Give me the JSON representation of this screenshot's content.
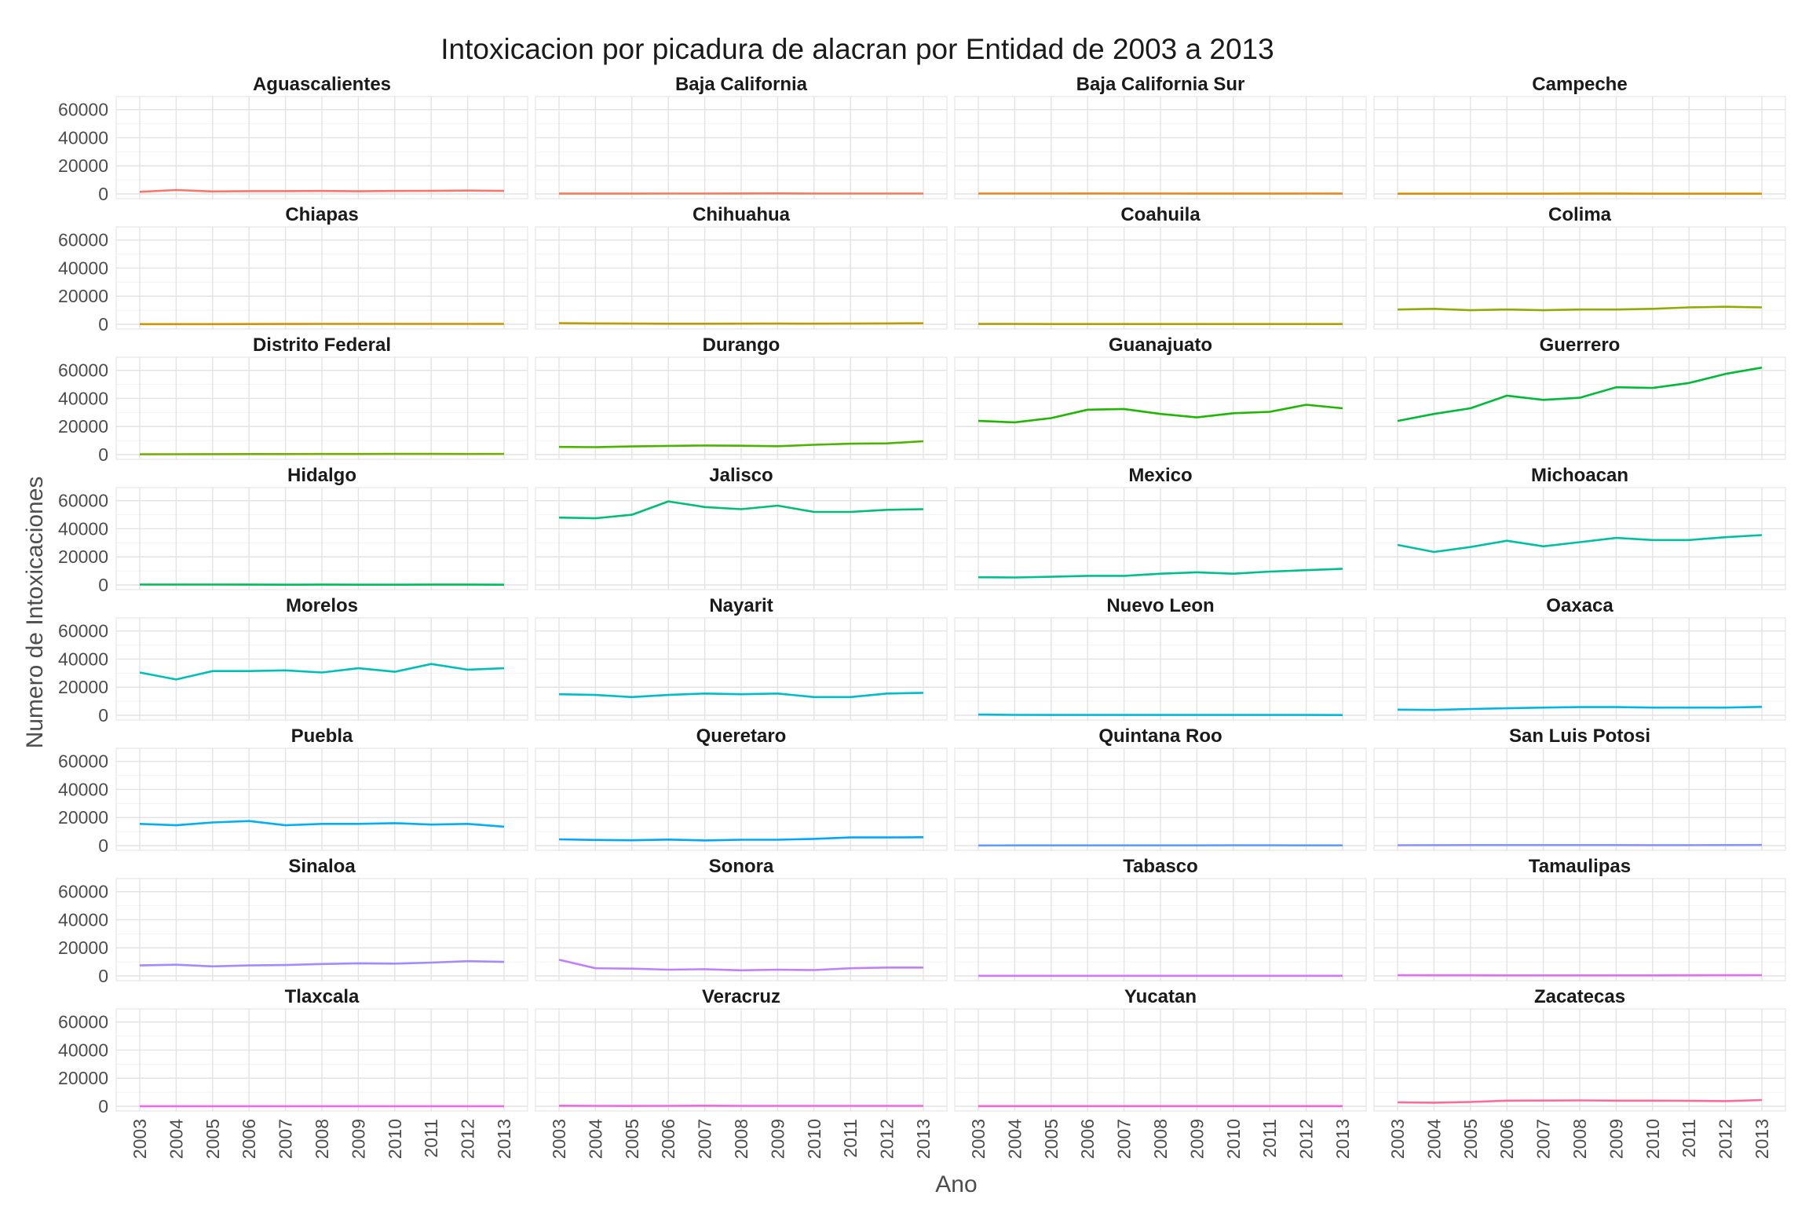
{
  "chart_data": {
    "type": "line",
    "title": "Intoxicacion por picadura de alacran por Entidad de 2003 a 2013",
    "xlabel": "Ano",
    "ylabel": "Numero de Intoxicaciones",
    "x": [
      2003,
      2004,
      2005,
      2006,
      2007,
      2008,
      2009,
      2010,
      2011,
      2012,
      2013
    ],
    "x_tick_labels": [
      "2003",
      "2004",
      "2005",
      "2006",
      "2007",
      "2008",
      "2009",
      "2010",
      "2011",
      "2012",
      "2013"
    ],
    "ylim": [
      0,
      66000
    ],
    "y_ticks": [
      0,
      20000,
      40000,
      60000
    ],
    "y_tick_labels": [
      "0",
      "20000",
      "40000",
      "60000"
    ],
    "grid": true,
    "legend": "none",
    "facet_columns": 4,
    "series": [
      {
        "panel": "Aguascalientes",
        "color": "#F8766D",
        "values": [
          1500,
          2800,
          1800,
          2000,
          2000,
          2100,
          1900,
          2100,
          2200,
          2400,
          2200
        ]
      },
      {
        "panel": "Baja California",
        "color": "#F37B59",
        "values": [
          200,
          200,
          250,
          300,
          300,
          350,
          400,
          300,
          300,
          300,
          300
        ]
      },
      {
        "panel": "Baja California Sur",
        "color": "#E7861B",
        "values": [
          300,
          300,
          300,
          350,
          300,
          300,
          250,
          250,
          250,
          300,
          250
        ]
      },
      {
        "panel": "Campeche",
        "color": "#DB8E00",
        "values": [
          150,
          150,
          150,
          150,
          150,
          200,
          200,
          150,
          150,
          150,
          150
        ]
      },
      {
        "panel": "Chiapas",
        "color": "#CF9400",
        "values": [
          100,
          100,
          100,
          150,
          200,
          300,
          300,
          300,
          300,
          300,
          300
        ]
      },
      {
        "panel": "Chihuahua",
        "color": "#BE9C00",
        "values": [
          800,
          600,
          500,
          400,
          400,
          450,
          500,
          450,
          500,
          600,
          700
        ]
      },
      {
        "panel": "Coahuila",
        "color": "#A9A400",
        "values": [
          200,
          200,
          150,
          150,
          150,
          150,
          150,
          150,
          150,
          150,
          150
        ]
      },
      {
        "panel": "Colima",
        "color": "#93AA00",
        "values": [
          10500,
          11000,
          10000,
          10500,
          10000,
          10500,
          10500,
          11000,
          12000,
          12500,
          12000
        ]
      },
      {
        "panel": "Distrito Federal",
        "color": "#72B000",
        "values": [
          200,
          300,
          350,
          400,
          400,
          450,
          450,
          500,
          500,
          450,
          500
        ]
      },
      {
        "panel": "Durango",
        "color": "#4BB400",
        "values": [
          5500,
          5300,
          5800,
          6200,
          6500,
          6300,
          6000,
          7000,
          7800,
          8000,
          9500
        ]
      },
      {
        "panel": "Guanajuato",
        "color": "#1FB700",
        "values": [
          24000,
          23000,
          26000,
          32000,
          32500,
          29000,
          26500,
          29500,
          30500,
          35500,
          33000
        ]
      },
      {
        "panel": "Guerrero",
        "color": "#00BA38",
        "values": [
          24000,
          29000,
          33000,
          42000,
          39000,
          40500,
          48000,
          47500,
          51000,
          57500,
          62000
        ]
      },
      {
        "panel": "Hidalgo",
        "color": "#00BC59",
        "values": [
          300,
          300,
          300,
          250,
          150,
          200,
          150,
          150,
          200,
          200,
          150
        ]
      },
      {
        "panel": "Jalisco",
        "color": "#00BE76",
        "values": [
          48000,
          47500,
          50000,
          59500,
          55500,
          54000,
          56500,
          52000,
          52000,
          53500,
          54000
        ]
      },
      {
        "panel": "Mexico",
        "color": "#00BF8E",
        "values": [
          5500,
          5300,
          5800,
          6500,
          6500,
          8000,
          9000,
          8000,
          9500,
          10500,
          11500
        ]
      },
      {
        "panel": "Michoacan",
        "color": "#00C0A3",
        "values": [
          28500,
          23500,
          27000,
          31500,
          27500,
          30500,
          33500,
          32000,
          32000,
          34000,
          35500
        ]
      },
      {
        "panel": "Morelos",
        "color": "#00BFB7",
        "values": [
          30500,
          25500,
          31500,
          31500,
          32000,
          30500,
          33500,
          31000,
          36500,
          32500,
          33500
        ]
      },
      {
        "panel": "Nayarit",
        "color": "#00BDC8",
        "values": [
          15000,
          14500,
          13000,
          14500,
          15500,
          15000,
          15500,
          13000,
          13000,
          15500,
          16000
        ]
      },
      {
        "panel": "Nuevo Leon",
        "color": "#00BAD9",
        "values": [
          500,
          300,
          200,
          200,
          200,
          200,
          200,
          200,
          200,
          200,
          150
        ]
      },
      {
        "panel": "Oaxaca",
        "color": "#00B5E7",
        "values": [
          4000,
          3800,
          4500,
          5000,
          5500,
          5800,
          5800,
          5500,
          5500,
          5500,
          6000
        ]
      },
      {
        "panel": "Puebla",
        "color": "#00AFF4",
        "values": [
          15500,
          14500,
          16500,
          17500,
          14500,
          15500,
          15500,
          16000,
          15000,
          15500,
          13500
        ]
      },
      {
        "panel": "Queretaro",
        "color": "#00A6FF",
        "values": [
          4500,
          4000,
          3800,
          4300,
          3700,
          4200,
          4200,
          4800,
          5800,
          5800,
          6000
        ]
      },
      {
        "panel": "Quintana Roo",
        "color": "#619CFF",
        "values": [
          100,
          150,
          150,
          150,
          150,
          150,
          150,
          200,
          200,
          150,
          150
        ]
      },
      {
        "panel": "San Luis Potosi",
        "color": "#8B93FF",
        "values": [
          300,
          350,
          400,
          400,
          400,
          400,
          400,
          350,
          350,
          400,
          450
        ]
      },
      {
        "panel": "Sinaloa",
        "color": "#A58AFF",
        "values": [
          7500,
          8000,
          6800,
          7500,
          7800,
          8500,
          9000,
          8800,
          9500,
          10500,
          10000
        ]
      },
      {
        "panel": "Sonora",
        "color": "#BF80FF",
        "values": [
          11500,
          5500,
          5200,
          4500,
          4800,
          4000,
          4500,
          4200,
          5500,
          6000,
          6000
        ]
      },
      {
        "panel": "Tabasco",
        "color": "#D277FF",
        "values": [
          100,
          100,
          100,
          100,
          100,
          100,
          100,
          100,
          100,
          100,
          100
        ]
      },
      {
        "panel": "Tamaulipas",
        "color": "#E26EF7",
        "values": [
          500,
          450,
          450,
          400,
          400,
          400,
          400,
          400,
          450,
          500,
          550
        ]
      },
      {
        "panel": "Tlaxcala",
        "color": "#ED68ED",
        "values": [
          50,
          50,
          50,
          50,
          50,
          50,
          50,
          50,
          50,
          50,
          50
        ]
      },
      {
        "panel": "Veracruz",
        "color": "#F564E3",
        "values": [
          400,
          300,
          250,
          300,
          400,
          300,
          300,
          300,
          300,
          300,
          300
        ]
      },
      {
        "panel": "Yucatan",
        "color": "#FA62D4",
        "values": [
          100,
          100,
          100,
          100,
          100,
          100,
          100,
          100,
          100,
          100,
          100
        ]
      },
      {
        "panel": "Zacatecas",
        "color": "#FF6A98",
        "values": [
          2800,
          2600,
          3100,
          4000,
          4100,
          4200,
          4000,
          4000,
          3900,
          3700,
          4500
        ]
      }
    ]
  }
}
